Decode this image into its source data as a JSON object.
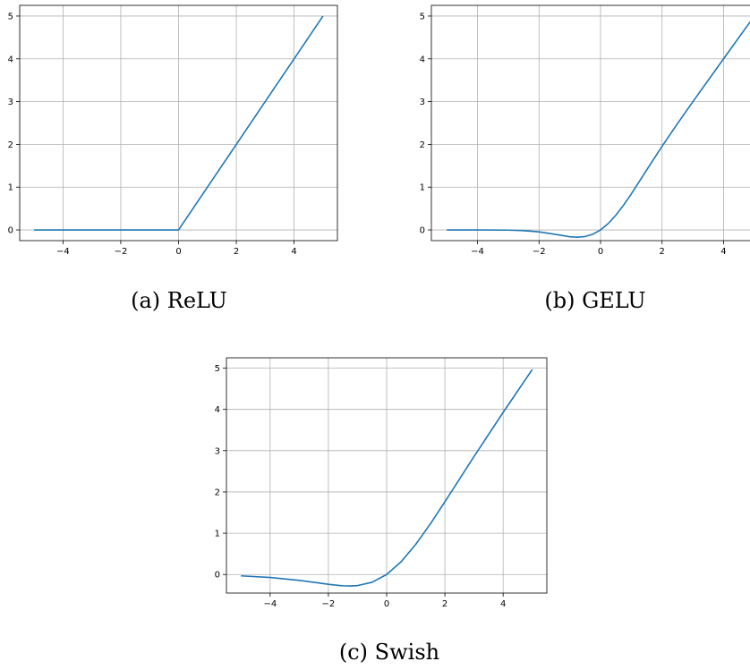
{
  "chart_data": [
    {
      "type": "line",
      "caption": "(a) ReLU",
      "xlim": [
        -5.5,
        5.5
      ],
      "ylim": [
        -0.25,
        5.25
      ],
      "xticks": [
        -4,
        -2,
        0,
        2,
        4
      ],
      "yticks": [
        0,
        1,
        2,
        3,
        4,
        5
      ],
      "grid": true,
      "series": [
        {
          "color": "#1f77b4",
          "x": [
            -5,
            -4,
            -3,
            -2,
            -1,
            0,
            1,
            2,
            3,
            4,
            5
          ],
          "y": [
            0,
            0,
            0,
            0,
            0,
            0,
            1,
            2,
            3,
            4,
            5
          ]
        }
      ]
    },
    {
      "type": "line",
      "caption": "(b) GELU",
      "xlim": [
        -5.5,
        5.5
      ],
      "ylim": [
        -0.25,
        5.25
      ],
      "xticks": [
        -4,
        -2,
        0,
        2,
        4
      ],
      "yticks": [
        0,
        1,
        2,
        3,
        4,
        5
      ],
      "grid": true,
      "series": [
        {
          "color": "#1f77b4",
          "x": [
            -5,
            -4,
            -3,
            -2.5,
            -2,
            -1.5,
            -1,
            -0.75,
            -0.5,
            -0.25,
            0,
            0.25,
            0.5,
            0.75,
            1,
            1.5,
            2,
            2.5,
            3,
            4,
            5
          ],
          "y": [
            0,
            -0.0001,
            -0.004,
            -0.016,
            -0.045,
            -0.1,
            -0.159,
            -0.17,
            -0.154,
            -0.1,
            0,
            0.15,
            0.346,
            0.58,
            0.841,
            1.4,
            1.955,
            2.484,
            2.996,
            4.0,
            5.0
          ]
        }
      ]
    },
    {
      "type": "line",
      "caption": "(c) Swish",
      "xlim": [
        -5.5,
        5.5
      ],
      "ylim": [
        -0.45,
        5.25
      ],
      "xticks": [
        -4,
        -2,
        0,
        2,
        4
      ],
      "yticks": [
        0,
        1,
        2,
        3,
        4,
        5
      ],
      "grid": true,
      "series": [
        {
          "color": "#1f77b4",
          "x": [
            -5,
            -4,
            -3,
            -2.5,
            -2,
            -1.5,
            -1.25,
            -1,
            -0.5,
            0,
            0.5,
            1,
            1.5,
            2,
            2.5,
            3,
            4,
            5
          ],
          "y": [
            -0.033,
            -0.072,
            -0.142,
            -0.189,
            -0.238,
            -0.274,
            -0.279,
            -0.269,
            -0.189,
            0,
            0.311,
            0.731,
            1.226,
            1.762,
            2.31,
            2.858,
            3.928,
            4.967
          ]
        }
      ]
    }
  ]
}
